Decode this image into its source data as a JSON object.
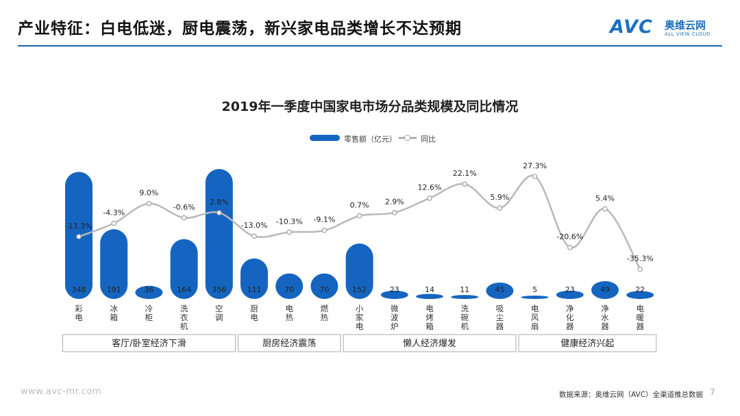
{
  "header": {
    "title": "产业特征：白电低迷，厨电震荡，新兴家电品类增长不达预期",
    "logo_text": "AVC",
    "logo_cn": "奥维云网",
    "logo_en": "ALL VIEW CLOUD"
  },
  "chart_data": {
    "type": "bar",
    "title": "2019年一季度中国家电市场分品类规模及同比情况",
    "legend": {
      "bar_label": "零售额（亿元）",
      "line_label": "同比"
    },
    "categories": [
      "彩电",
      "冰箱",
      "冷柜",
      "洗衣机",
      "空调",
      "厨电",
      "电热",
      "燃热",
      "小家电",
      "微波炉",
      "电烤箱",
      "洗碗机",
      "吸尘器",
      "电风扇",
      "净化器",
      "净水器",
      "电暖器"
    ],
    "series": [
      {
        "name": "零售额（亿元）",
        "type": "bar",
        "values": [
          348,
          191,
          36,
          164,
          356,
          111,
          70,
          70,
          152,
          23,
          14,
          11,
          45,
          5,
          23,
          49,
          22
        ]
      },
      {
        "name": "同比",
        "type": "line",
        "values": [
          -13.3,
          -4.3,
          9.0,
          -0.6,
          2.8,
          -13.0,
          -10.3,
          -9.1,
          0.7,
          2.9,
          12.6,
          22.1,
          5.9,
          27.3,
          -20.6,
          5.4,
          -35.3
        ]
      }
    ],
    "value_labels": [
      "348",
      "191",
      "36",
      "164",
      "356",
      "111",
      "70",
      "70",
      "152",
      "23",
      "14",
      "11",
      "45",
      "5",
      "23",
      "49",
      "22"
    ],
    "pct_labels": [
      "-13.3%",
      "-4.3%",
      "9.0%",
      "-0.6%",
      "2.8%",
      "-13.0%",
      "-10.3%",
      "-9.1%",
      "0.7%",
      "2.9%",
      "12.6%",
      "22.1%",
      "5.9%",
      "27.3%",
      "-20.6%",
      "5.4%",
      "-35.3%"
    ],
    "groups": [
      {
        "label": "客厅/卧室经济下滑",
        "start": 0,
        "end": 4
      },
      {
        "label": "厨房经济震荡",
        "start": 5,
        "end": 7
      },
      {
        "label": "懒人经济爆发",
        "start": 8,
        "end": 12
      },
      {
        "label": "健康经济兴起",
        "start": 13,
        "end": 16
      }
    ],
    "colors": {
      "bar": "#1565c0",
      "line": "#b8b8b8",
      "marker_edge": "#9e9e9e"
    }
  },
  "footer": {
    "website": "www.avc-mr.com",
    "source": "数据来源：奥维云网（AVC）全渠道推总数据",
    "page": "7"
  }
}
